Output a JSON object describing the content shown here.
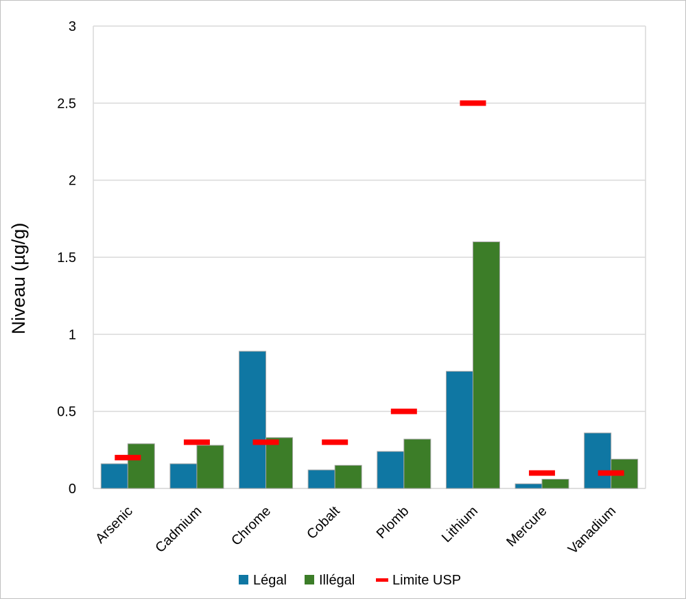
{
  "chart_data": {
    "type": "bar",
    "title": "",
    "xlabel": "",
    "ylabel": "Niveau (µg/g)",
    "ylim": [
      0,
      3
    ],
    "yticks": [
      "0",
      "0.5",
      "1",
      "1.5",
      "2",
      "2.5",
      "3"
    ],
    "ytick_values": [
      0,
      0.5,
      1,
      1.5,
      2,
      2.5,
      3
    ],
    "grid": true,
    "legend_position": "bottom",
    "categories": [
      "Arsenic",
      "Cadmium",
      "Chrome",
      "Cobalt",
      "Plomb",
      "Lithium",
      "Mercure",
      "Vanadium"
    ],
    "series": [
      {
        "name": "Légal",
        "color": "#0f77a3",
        "values": [
          0.16,
          0.16,
          0.89,
          0.12,
          0.24,
          0.76,
          0.03,
          0.36
        ]
      },
      {
        "name": "Illégal",
        "color": "#3c7d28",
        "values": [
          0.29,
          0.28,
          0.33,
          0.15,
          0.32,
          1.6,
          0.06,
          0.19
        ]
      }
    ],
    "limit_series": {
      "name": "Limite USP",
      "color": "#ff0000",
      "values": [
        0.2,
        0.3,
        0.3,
        0.3,
        0.5,
        2.5,
        0.1,
        0.1
      ]
    }
  }
}
